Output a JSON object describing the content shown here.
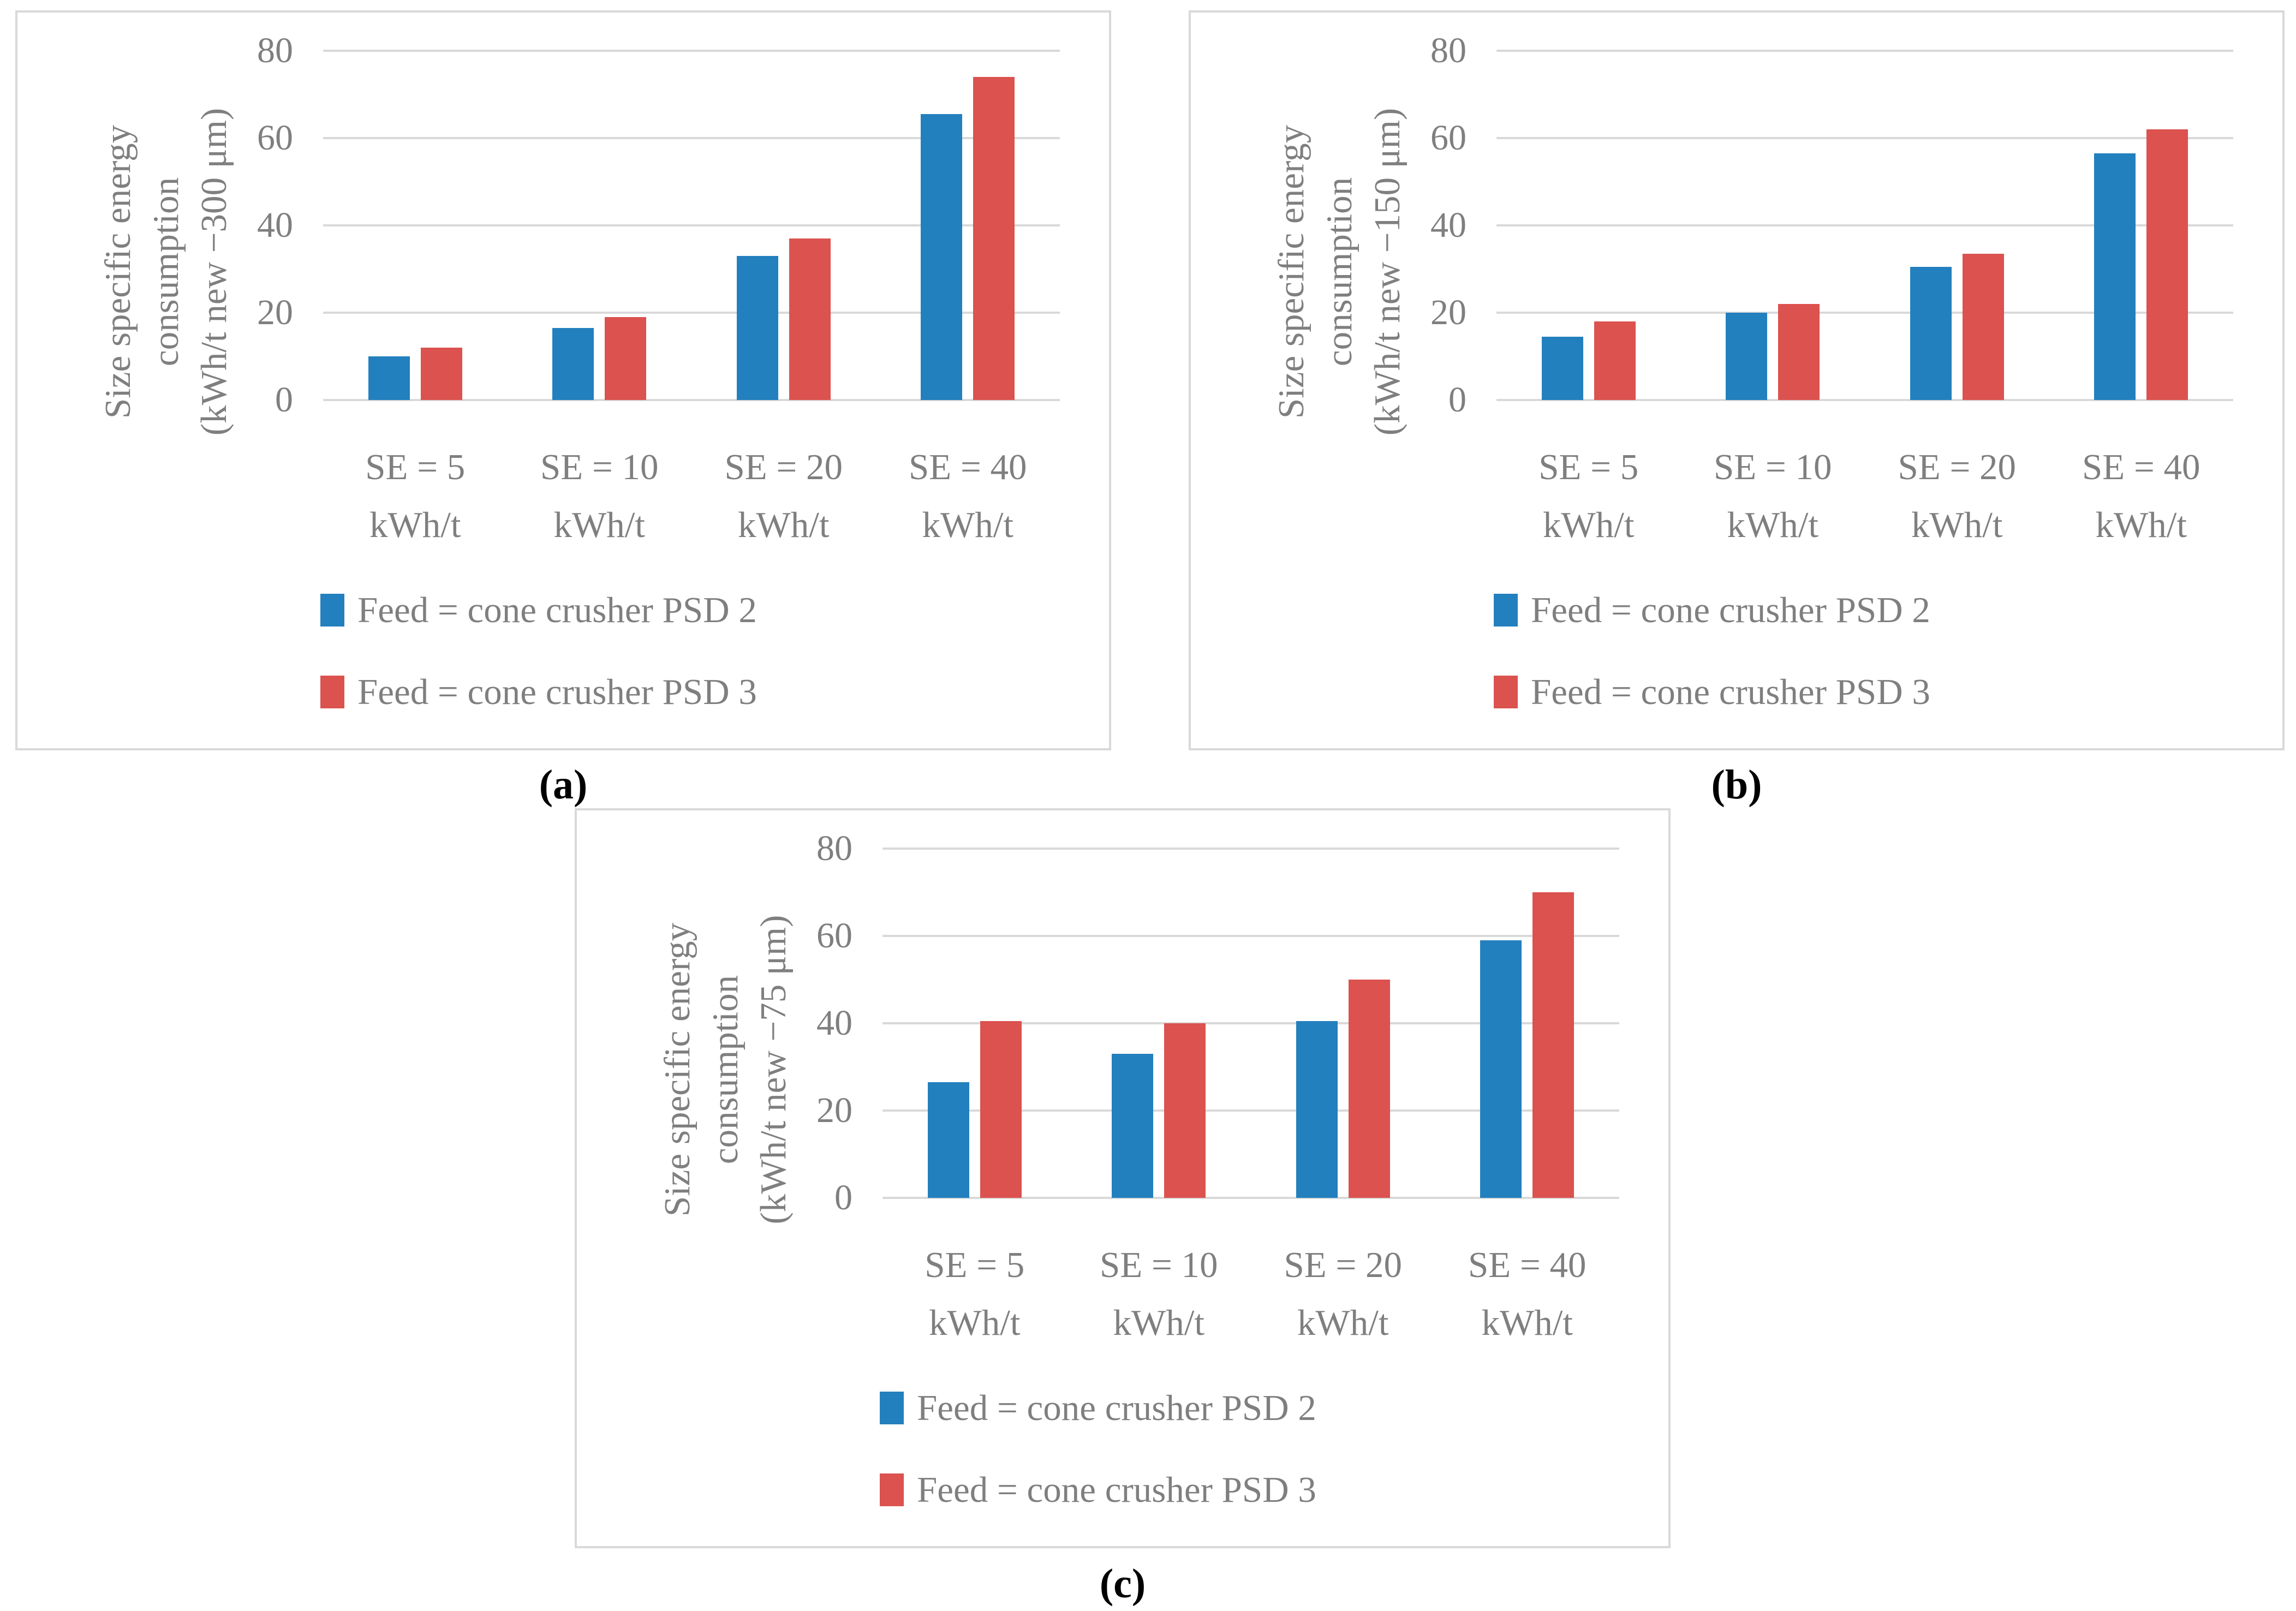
{
  "figure": {
    "legend": [
      "Feed = cone crusher PSD 2",
      "Feed = cone crusher PSD 3"
    ],
    "colors": {
      "psd2": "#2380BE",
      "psd3": "#DB524F",
      "gridline": "#D9D9D9",
      "panel_border": "#D9D9D9",
      "chart_text": "#7F7F7F",
      "caption_text": "#000000"
    }
  },
  "chart_data": [
    {
      "type": "bar",
      "caption": "(a)",
      "ylabel_lines": [
        "Size specific energy",
        "consumption",
        "(kWh/t new −300 μm)"
      ],
      "categories": [
        [
          "SE = 5",
          "kWh/t"
        ],
        [
          "SE = 10",
          "kWh/t"
        ],
        [
          "SE = 20",
          "kWh/t"
        ],
        [
          "SE = 40",
          "kWh/t"
        ]
      ],
      "yticks": [
        0,
        20,
        40,
        60,
        80
      ],
      "ylim": [
        0,
        80
      ],
      "grid": true,
      "legend_position": "bottom",
      "series": [
        {
          "name": "Feed = cone crusher PSD 2",
          "color": "#2380BE",
          "values": [
            10,
            16.5,
            33,
            65.5
          ]
        },
        {
          "name": "Feed = cone crusher PSD 3",
          "color": "#DB524F",
          "values": [
            12,
            19,
            37,
            74
          ]
        }
      ]
    },
    {
      "type": "bar",
      "caption": "(b)",
      "ylabel_lines": [
        "Size specific energy",
        "consumption",
        "(kWh/t new −150 μm)"
      ],
      "categories": [
        [
          "SE = 5",
          "kWh/t"
        ],
        [
          "SE = 10",
          "kWh/t"
        ],
        [
          "SE = 20",
          "kWh/t"
        ],
        [
          "SE = 40",
          "kWh/t"
        ]
      ],
      "yticks": [
        0,
        20,
        40,
        60,
        80
      ],
      "ylim": [
        0,
        80
      ],
      "grid": true,
      "legend_position": "bottom",
      "series": [
        {
          "name": "Feed = cone crusher PSD 2",
          "color": "#2380BE",
          "values": [
            14.5,
            20,
            30.5,
            56.5
          ]
        },
        {
          "name": "Feed = cone crusher PSD 3",
          "color": "#DB524F",
          "values": [
            18,
            22,
            33.5,
            62
          ]
        }
      ]
    },
    {
      "type": "bar",
      "caption": "(c)",
      "ylabel_lines": [
        "Size specific energy",
        "consumption",
        "(kWh/t new −75 μm)"
      ],
      "categories": [
        [
          "SE = 5",
          "kWh/t"
        ],
        [
          "SE = 10",
          "kWh/t"
        ],
        [
          "SE = 20",
          "kWh/t"
        ],
        [
          "SE = 40",
          "kWh/t"
        ]
      ],
      "yticks": [
        0,
        20,
        40,
        60,
        80
      ],
      "ylim": [
        0,
        80
      ],
      "grid": true,
      "legend_position": "bottom",
      "series": [
        {
          "name": "Feed = cone crusher PSD 2",
          "color": "#2380BE",
          "values": [
            26.5,
            33,
            40.5,
            59
          ]
        },
        {
          "name": "Feed = cone crusher PSD 3",
          "color": "#DB524F",
          "values": [
            40.5,
            40,
            50,
            70
          ]
        }
      ]
    }
  ]
}
